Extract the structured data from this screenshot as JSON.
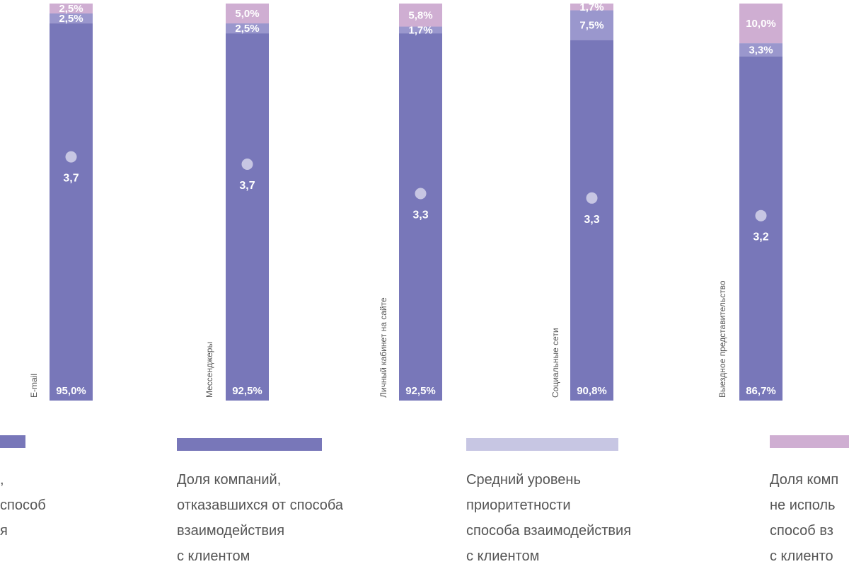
{
  "colors": {
    "used": "#7877b9",
    "refused": "#9a97cd",
    "not_used": "#cfaed2",
    "avg_dot": "#c7c6e3"
  },
  "chart_data": {
    "type": "bar",
    "stacked": true,
    "categories": [
      "E-mail",
      "Мессенджеры",
      "Личный кабинет на сайте",
      "Социальные сети",
      "Выездное представительство"
    ],
    "series": [
      {
        "key": "used",
        "values": [
          95.0,
          92.5,
          92.5,
          90.8,
          86.7
        ],
        "labels": [
          "95,0%",
          "92,5%",
          "92,5%",
          "90,8%",
          "86,7%"
        ]
      },
      {
        "key": "refused",
        "values": [
          2.5,
          2.5,
          1.7,
          7.5,
          3.3
        ],
        "labels": [
          "2,5%",
          "2,5%",
          "1,7%",
          "7,5%",
          "3,3%"
        ]
      },
      {
        "key": "not_used",
        "values": [
          2.5,
          5.0,
          5.8,
          1.7,
          10.0
        ],
        "labels": [
          "2,5%",
          "5,0%",
          "5,8%",
          "1,7%",
          "10,0%"
        ]
      }
    ],
    "avg_priority": {
      "values": [
        3.7,
        3.7,
        3.3,
        3.3,
        3.2
      ],
      "labels": [
        "3,7",
        "3,7",
        "3,3",
        "3,3",
        "3,2"
      ]
    },
    "ylim": [
      0,
      100
    ]
  },
  "legend": [
    {
      "key": "used",
      "lines": [
        ",",
        "способ",
        "я"
      ]
    },
    {
      "key": "refused",
      "lines": [
        "Доля компаний,",
        "отказавшихся от способа",
        "взаимодействия",
        "с клиентом"
      ]
    },
    {
      "key": "avg",
      "lines": [
        "Средний уровень",
        "приоритетности",
        "способа взаимодействия",
        "с клиентом"
      ]
    },
    {
      "key": "not_used",
      "lines": [
        "Доля комп",
        "не исполь",
        "способ вз",
        "с клиенто"
      ]
    }
  ]
}
